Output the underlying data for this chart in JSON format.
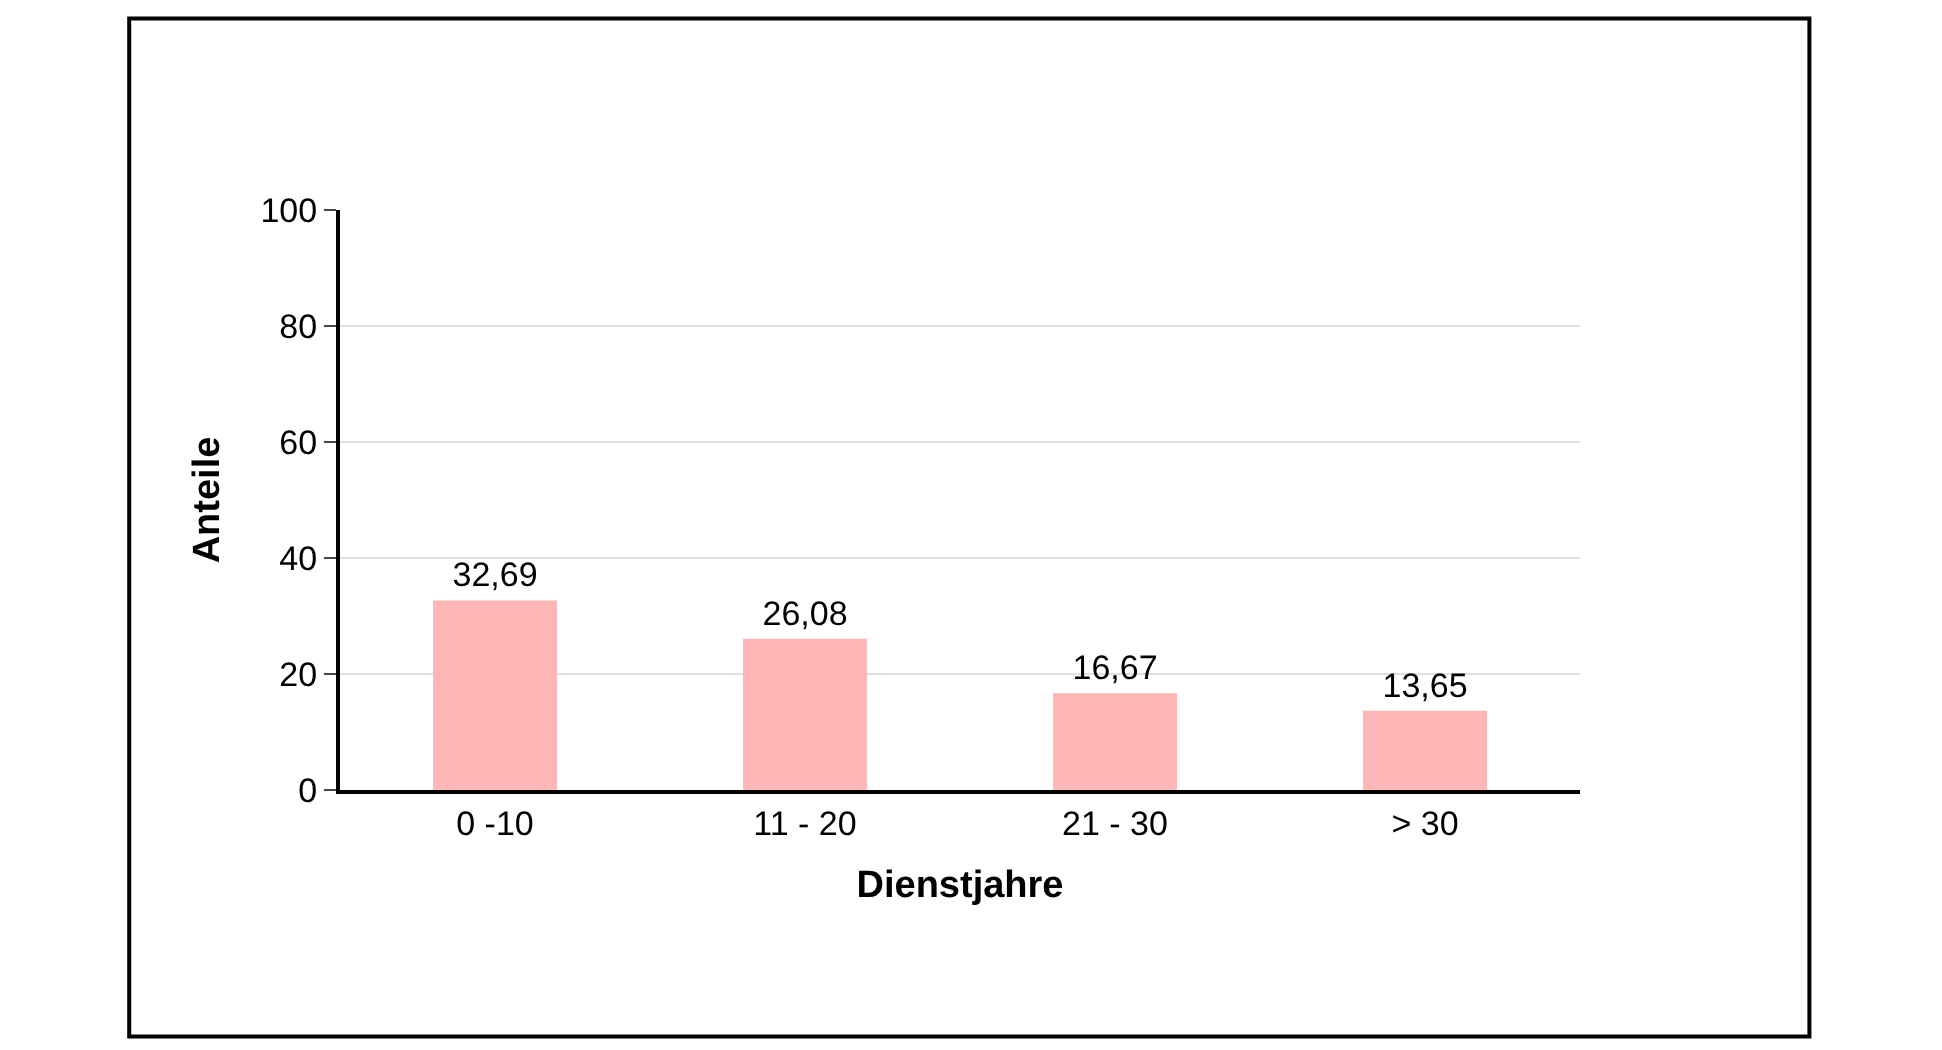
{
  "chart_data": {
    "type": "bar",
    "xlabel": "Dienstjahre",
    "ylabel": "Anteile",
    "categories": [
      "0 -10",
      "11 - 20",
      "21 - 30",
      "> 30"
    ],
    "values": [
      32.69,
      26.08,
      16.67,
      13.65
    ],
    "value_labels": [
      "32,69",
      "26,08",
      "16,67",
      "13,65"
    ],
    "color": "#ffb6b6",
    "ylim": [
      0,
      100
    ],
    "yticks": [
      0,
      20,
      40,
      60,
      80,
      100
    ],
    "grid": "y"
  }
}
